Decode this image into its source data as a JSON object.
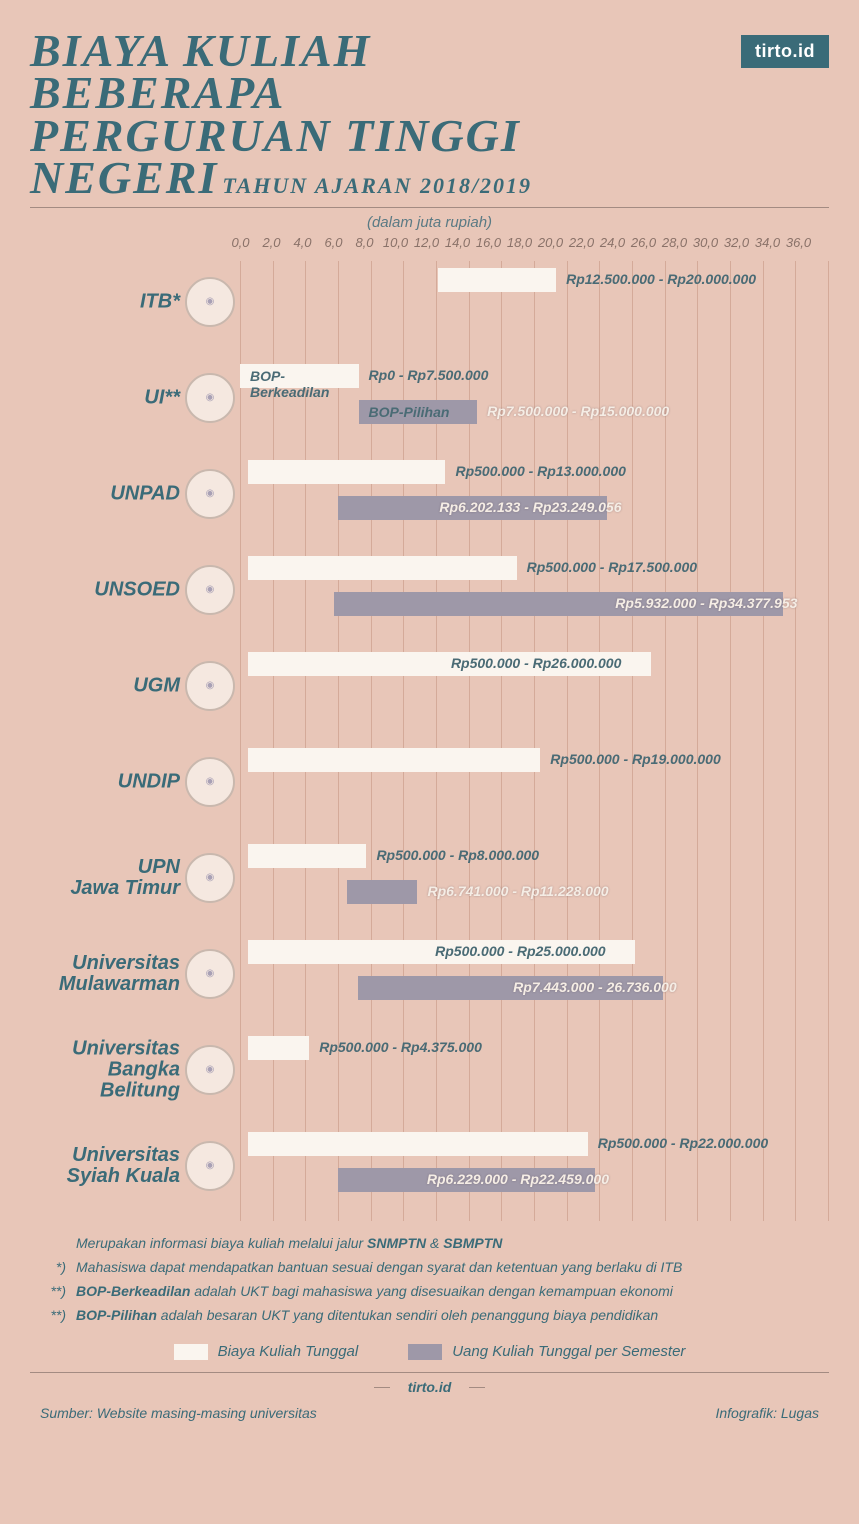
{
  "colors": {
    "bg": "#e8c6b8",
    "accent": "#3a6b78",
    "barWhite": "#faf5ef",
    "barGray": "#9e98a8",
    "gridline": "#d4aa99",
    "tick": "#8a7269",
    "lightText": "#f5ede5"
  },
  "brand": "tirto.id",
  "title": {
    "l1": "BIAYA KULIAH",
    "l2": "BEBERAPA",
    "l3": "PERGURUAN TINGGI",
    "l4": "NEGERI",
    "fontsize": 46
  },
  "subtitle": "TAHUN AJARAN 2018/2019",
  "axis": {
    "unitLabel": "(dalam juta rupiah)",
    "min": 0,
    "max": 36,
    "step": 2,
    "ticks": [
      "0,0",
      "2,0",
      "4,0",
      "6,0",
      "8,0",
      "10,0",
      "12,0",
      "14,0",
      "16,0",
      "18,0",
      "20,0",
      "22,0",
      "24,0",
      "26,0",
      "28,0",
      "30,0",
      "32,0",
      "34,0",
      "36,0"
    ],
    "plotPx": 569
  },
  "rows": [
    {
      "name": "ITB*",
      "bars": [
        {
          "kind": "white",
          "from": 12.5,
          "to": 20,
          "label": "Rp12.500.000 - Rp20.000.000",
          "labelPos": "right",
          "labelTone": "dark"
        }
      ]
    },
    {
      "name": "UI**",
      "bars": [
        {
          "kind": "white",
          "from": 0,
          "to": 7.5,
          "inbar": "BOP-Berkeadilan",
          "label": "Rp0 - Rp7.500.000",
          "labelPos": "right",
          "labelTone": "dark"
        },
        {
          "kind": "gray",
          "from": 7.5,
          "to": 15,
          "inbar": "BOP-Pilihan",
          "label": "Rp7.500.000 - Rp15.000.000",
          "labelPos": "right",
          "labelTone": "light"
        }
      ]
    },
    {
      "name": "UNPAD",
      "bars": [
        {
          "kind": "white",
          "from": 0.5,
          "to": 13,
          "label": "Rp500.000 - Rp13.000.000",
          "labelPos": "right",
          "labelTone": "dark"
        },
        {
          "kind": "gray",
          "from": 6.2,
          "to": 23.25,
          "label": "Rp6.202.133 - Rp23.249.056",
          "labelPos": "over",
          "labelTone": "light"
        }
      ]
    },
    {
      "name": "UNSOED",
      "bars": [
        {
          "kind": "white",
          "from": 0.5,
          "to": 17.5,
          "label": "Rp500.000 - Rp17.500.000",
          "labelPos": "right",
          "labelTone": "dark"
        },
        {
          "kind": "gray",
          "from": 5.93,
          "to": 34.38,
          "label": "Rp5.932.000 - Rp34.377.953",
          "labelPos": "over",
          "labelTone": "light"
        }
      ]
    },
    {
      "name": "UGM",
      "bars": [
        {
          "kind": "white",
          "from": 0.5,
          "to": 26,
          "label": "Rp500.000 - Rp26.000.000",
          "labelPos": "over-right",
          "labelTone": "dark"
        }
      ]
    },
    {
      "name": "UNDIP",
      "bars": [
        {
          "kind": "white",
          "from": 0.5,
          "to": 19,
          "label": "Rp500.000 - Rp19.000.000",
          "labelPos": "right",
          "labelTone": "dark"
        }
      ]
    },
    {
      "name": "UPN\nJawa Timur",
      "bars": [
        {
          "kind": "white",
          "from": 0.5,
          "to": 8,
          "label": "Rp500.000 - Rp8.000.000",
          "labelPos": "right",
          "labelTone": "dark"
        },
        {
          "kind": "gray",
          "from": 6.74,
          "to": 11.23,
          "label": "Rp6.741.000 - Rp11.228.000",
          "labelPos": "right",
          "labelTone": "light"
        }
      ]
    },
    {
      "name": "Universitas\nMulawarman",
      "bars": [
        {
          "kind": "white",
          "from": 0.5,
          "to": 25,
          "label": "Rp500.000 - Rp25.000.000",
          "labelPos": "over-right",
          "labelTone": "dark"
        },
        {
          "kind": "gray",
          "from": 7.44,
          "to": 26.74,
          "label": "Rp7.443.000 - 26.736.000",
          "labelPos": "over",
          "labelTone": "light"
        }
      ]
    },
    {
      "name": "Universitas\nBangka\nBelitung",
      "bars": [
        {
          "kind": "white",
          "from": 0.5,
          "to": 4.38,
          "label": "Rp500.000 - Rp4.375.000",
          "labelPos": "right",
          "labelTone": "dark"
        }
      ]
    },
    {
      "name": "Universitas\nSyiah Kuala",
      "bars": [
        {
          "kind": "white",
          "from": 0.5,
          "to": 22,
          "label": "Rp500.000 - Rp22.000.000",
          "labelPos": "right",
          "labelTone": "dark"
        },
        {
          "kind": "gray",
          "from": 6.23,
          "to": 22.46,
          "label": "Rp6.229.000 - Rp22.459.000",
          "labelPos": "over",
          "labelTone": "light"
        }
      ]
    }
  ],
  "footnotes": {
    "intro": "Merupakan informasi biaya kuliah melalui jalur <b>SNMPTN</b> & <b>SBMPTN</b>",
    "items": [
      {
        "mark": "*)",
        "text": "Mahasiswa dapat mendapatkan bantuan sesuai dengan syarat dan ketentuan yang berlaku di ITB"
      },
      {
        "mark": "**)",
        "text": "<b>BOP-Berkeadilan</b> adalah UKT bagi mahasiswa yang disesuaikan dengan kemampuan ekonomi"
      },
      {
        "mark": "**)",
        "text": "<b>BOP-Pilihan</b> adalah besaran UKT yang ditentukan sendiri oleh penanggung biaya pendidikan"
      }
    ]
  },
  "legend": [
    {
      "color": "#faf5ef",
      "label": "Biaya Kuliah Tunggal"
    },
    {
      "color": "#9e98a8",
      "label": "Uang Kuliah Tunggal per Semester"
    }
  ],
  "footer": {
    "site": "tirto.id",
    "source": "Sumber: Website masing-masing universitas",
    "credit": "Infografik: Lugas"
  }
}
